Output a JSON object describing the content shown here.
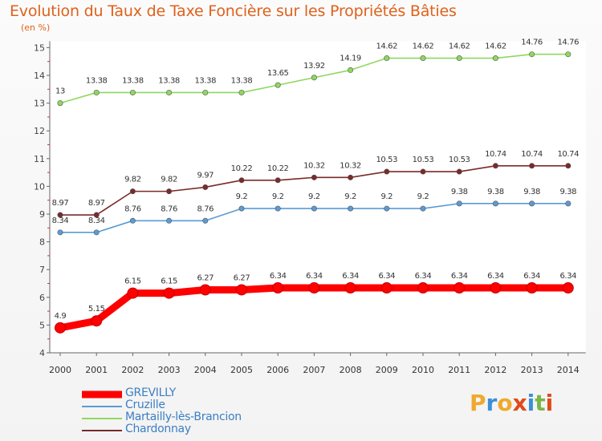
{
  "header": {
    "title": "Evolution du Taux de Taxe Foncière sur les Propriétés Bâties",
    "unit": "(en %)"
  },
  "brand": {
    "name": "Proxiti",
    "letter_colors": [
      "#f0a92e",
      "#3b8fd8",
      "#f0a92e",
      "#e04a1a",
      "#3b8fd8",
      "#7ab648",
      "#e04a1a"
    ]
  },
  "chart_data": {
    "type": "line",
    "x": [
      "2000",
      "2001",
      "2002",
      "2003",
      "2004",
      "2005",
      "2006",
      "2007",
      "2008",
      "2009",
      "2010",
      "2011",
      "2012",
      "2013",
      "2014"
    ],
    "ylim": [
      4,
      15
    ],
    "yticks": [
      "4",
      "5",
      "6",
      "7",
      "8",
      "9",
      "10",
      "11",
      "12",
      "13",
      "14",
      "15"
    ],
    "grid": false,
    "legend_position": "bottom-left",
    "series": [
      {
        "name": "GREVILLY",
        "color": "#ff0000",
        "values": [
          4.9,
          5.15,
          6.15,
          6.15,
          6.27,
          6.27,
          6.34,
          6.34,
          6.34,
          6.34,
          6.34,
          6.34,
          6.34,
          6.34,
          6.34
        ],
        "labels": [
          "4.9",
          "5.15",
          "6.15",
          "6.15",
          "6.27",
          "6.27",
          "6.34",
          "6.34",
          "6.34",
          "6.34",
          "6.34",
          "6.34",
          "6.34",
          "6.34",
          "6.34"
        ]
      },
      {
        "name": "Cruzille",
        "color": "#5b9bd5",
        "values": [
          8.34,
          8.34,
          8.76,
          8.76,
          8.76,
          9.2,
          9.2,
          9.2,
          9.2,
          9.2,
          9.2,
          9.38,
          9.38,
          9.38,
          9.38
        ],
        "labels": [
          "8.34",
          "8.34",
          "8.76",
          "8.76",
          "8.76",
          "9.2",
          "9.2",
          "9.2",
          "9.2",
          "9.2",
          "9.2",
          "9.38",
          "9.38",
          "9.38",
          "9.38"
        ]
      },
      {
        "name": "Martailly-lès-Brancion",
        "color": "#8fd860",
        "values": [
          13,
          13.38,
          13.38,
          13.38,
          13.38,
          13.38,
          13.65,
          13.92,
          14.19,
          14.62,
          14.62,
          14.62,
          14.62,
          14.76,
          14.76
        ],
        "labels": [
          "13",
          "13.38",
          "13.38",
          "13.38",
          "13.38",
          "13.38",
          "13.65",
          "13.92",
          "14.19",
          "14.62",
          "14.62",
          "14.62",
          "14.62",
          "14.76",
          "14.76"
        ]
      },
      {
        "name": "Chardonnay",
        "color": "#7a2a2a",
        "values": [
          8.97,
          8.97,
          9.82,
          9.82,
          9.97,
          10.22,
          10.22,
          10.32,
          10.32,
          10.53,
          10.53,
          10.53,
          10.74,
          10.74,
          10.74
        ],
        "labels": [
          "8.97",
          "8.97",
          "9.82",
          "9.82",
          "9.97",
          "10.22",
          "10.22",
          "10.32",
          "10.32",
          "10.53",
          "10.53",
          "10.53",
          "10.74",
          "10.74",
          "10.74"
        ]
      }
    ]
  }
}
